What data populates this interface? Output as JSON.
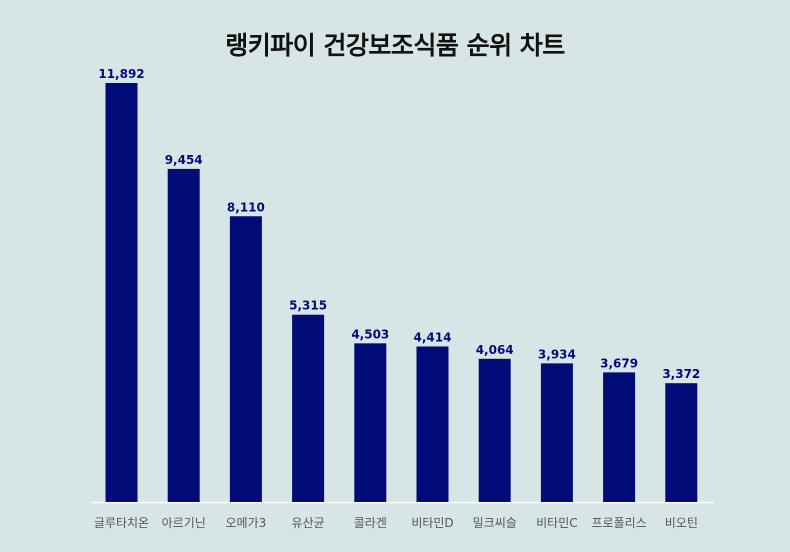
{
  "chart_data": {
    "type": "bar",
    "title": "랭키파이 건강보조식품 순위 차트",
    "categories": [
      "글루타치온",
      "아르기닌",
      "오메가3",
      "유산균",
      "콜라겐",
      "비타민D",
      "밀크씨슬",
      "비타민C",
      "프로폴리스",
      "비오틴"
    ],
    "values": [
      11892,
      9454,
      8110,
      5315,
      4503,
      4414,
      4064,
      3934,
      3679,
      3372
    ],
    "value_labels": [
      "11,892",
      "9,454",
      "8,110",
      "5,315",
      "4,503",
      "4,414",
      "4,064",
      "3,934",
      "3,679",
      "3,372"
    ],
    "xlabel": "",
    "ylabel": "",
    "ylim": [
      0,
      12000
    ],
    "grid": false,
    "bar_color": "#020c78",
    "background_color": "#d8e5e6"
  }
}
